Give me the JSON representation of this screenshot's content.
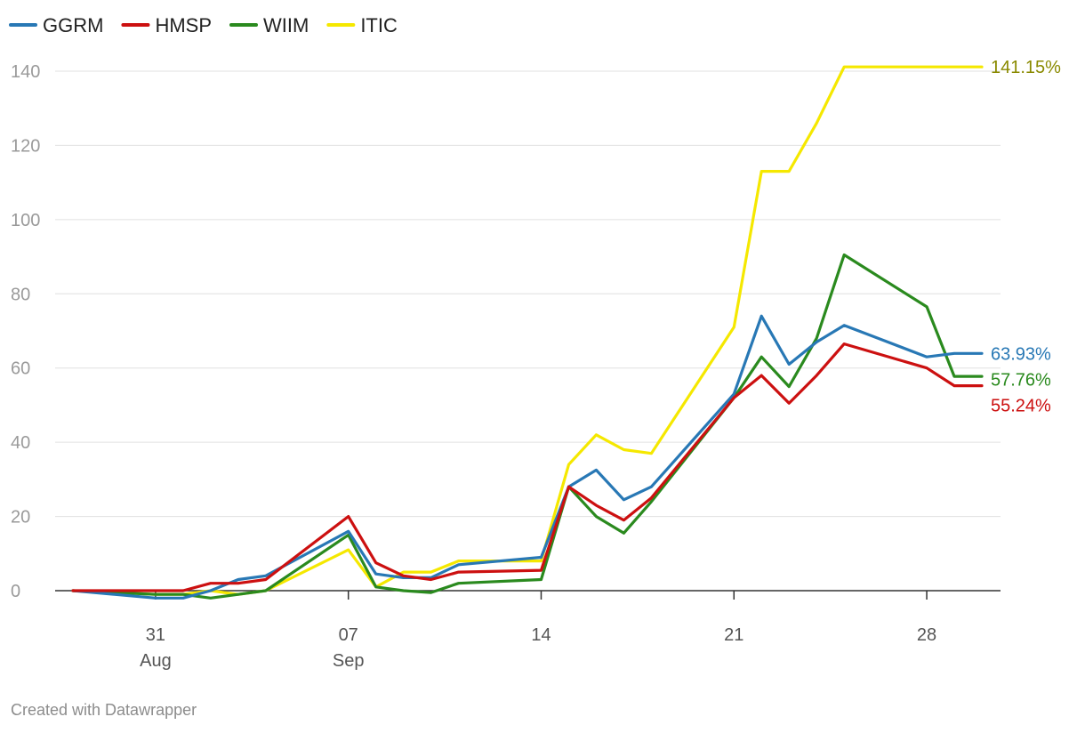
{
  "chart_data": {
    "type": "line",
    "title": "",
    "xlabel": "",
    "ylabel": "",
    "x": [
      "2020-08-28",
      "2020-08-31",
      "2020-09-01",
      "2020-09-02",
      "2020-09-03",
      "2020-09-04",
      "2020-09-07",
      "2020-09-08",
      "2020-09-09",
      "2020-09-10",
      "2020-09-11",
      "2020-09-14",
      "2020-09-15",
      "2020-09-16",
      "2020-09-17",
      "2020-09-18",
      "2020-09-21",
      "2020-09-22",
      "2020-09-23",
      "2020-09-24",
      "2020-09-25",
      "2020-09-28",
      "2020-09-29",
      "2020-09-30"
    ],
    "ylim": [
      0,
      145
    ],
    "yticks": [
      0,
      20,
      40,
      60,
      80,
      100,
      120,
      140
    ],
    "xticks": [
      {
        "date": "2020-08-31",
        "day": "31",
        "month": "Aug"
      },
      {
        "date": "2020-09-07",
        "day": "07",
        "month": "Sep"
      },
      {
        "date": "2020-09-14",
        "day": "14",
        "month": ""
      },
      {
        "date": "2020-09-21",
        "day": "21",
        "month": ""
      },
      {
        "date": "2020-09-28",
        "day": "28",
        "month": ""
      }
    ],
    "grid": true,
    "legend_position": "top-left",
    "series": [
      {
        "name": "ITIC",
        "color": "#f5e800",
        "label_color": "#8a8a00",
        "end_label": "141.15%",
        "values": [
          0,
          -1,
          -1,
          0,
          -1,
          0,
          11,
          1,
          5,
          5,
          8,
          8,
          34,
          42,
          38,
          37,
          71,
          113,
          113,
          126,
          141.15,
          141.15,
          141.15,
          141.15
        ]
      },
      {
        "name": "WIIM",
        "color": "#2a8a1e",
        "label_color": "#2a8a1e",
        "end_label": "57.76%",
        "values": [
          0,
          -1,
          -1,
          -2,
          -1,
          0,
          15,
          1,
          0,
          -0.5,
          2,
          3,
          28,
          20,
          15.5,
          24,
          52,
          63,
          55,
          68,
          90.5,
          76.5,
          57.76,
          57.76
        ]
      },
      {
        "name": "GGRM",
        "color": "#2878b5",
        "label_color": "#2878b5",
        "end_label": "63.93%",
        "values": [
          0,
          -2,
          -2,
          0,
          3,
          4,
          16,
          4.5,
          3.5,
          3.5,
          7,
          9,
          28,
          32.5,
          24.5,
          28,
          53,
          74,
          61,
          67,
          71.5,
          63,
          63.93,
          63.93
        ]
      },
      {
        "name": "HMSP",
        "color": "#cc1010",
        "label_color": "#cc1010",
        "end_label": "55.24%",
        "values": [
          0,
          0,
          0,
          2,
          2,
          3,
          20,
          7.5,
          4,
          3,
          5,
          5.5,
          28,
          23,
          19,
          25,
          52,
          58,
          50.5,
          58,
          66.5,
          60,
          55.24,
          55.24
        ]
      }
    ],
    "legend_order": [
      "GGRM",
      "HMSP",
      "WIIM",
      "ITIC"
    ]
  },
  "credit": "Created with Datawrapper"
}
